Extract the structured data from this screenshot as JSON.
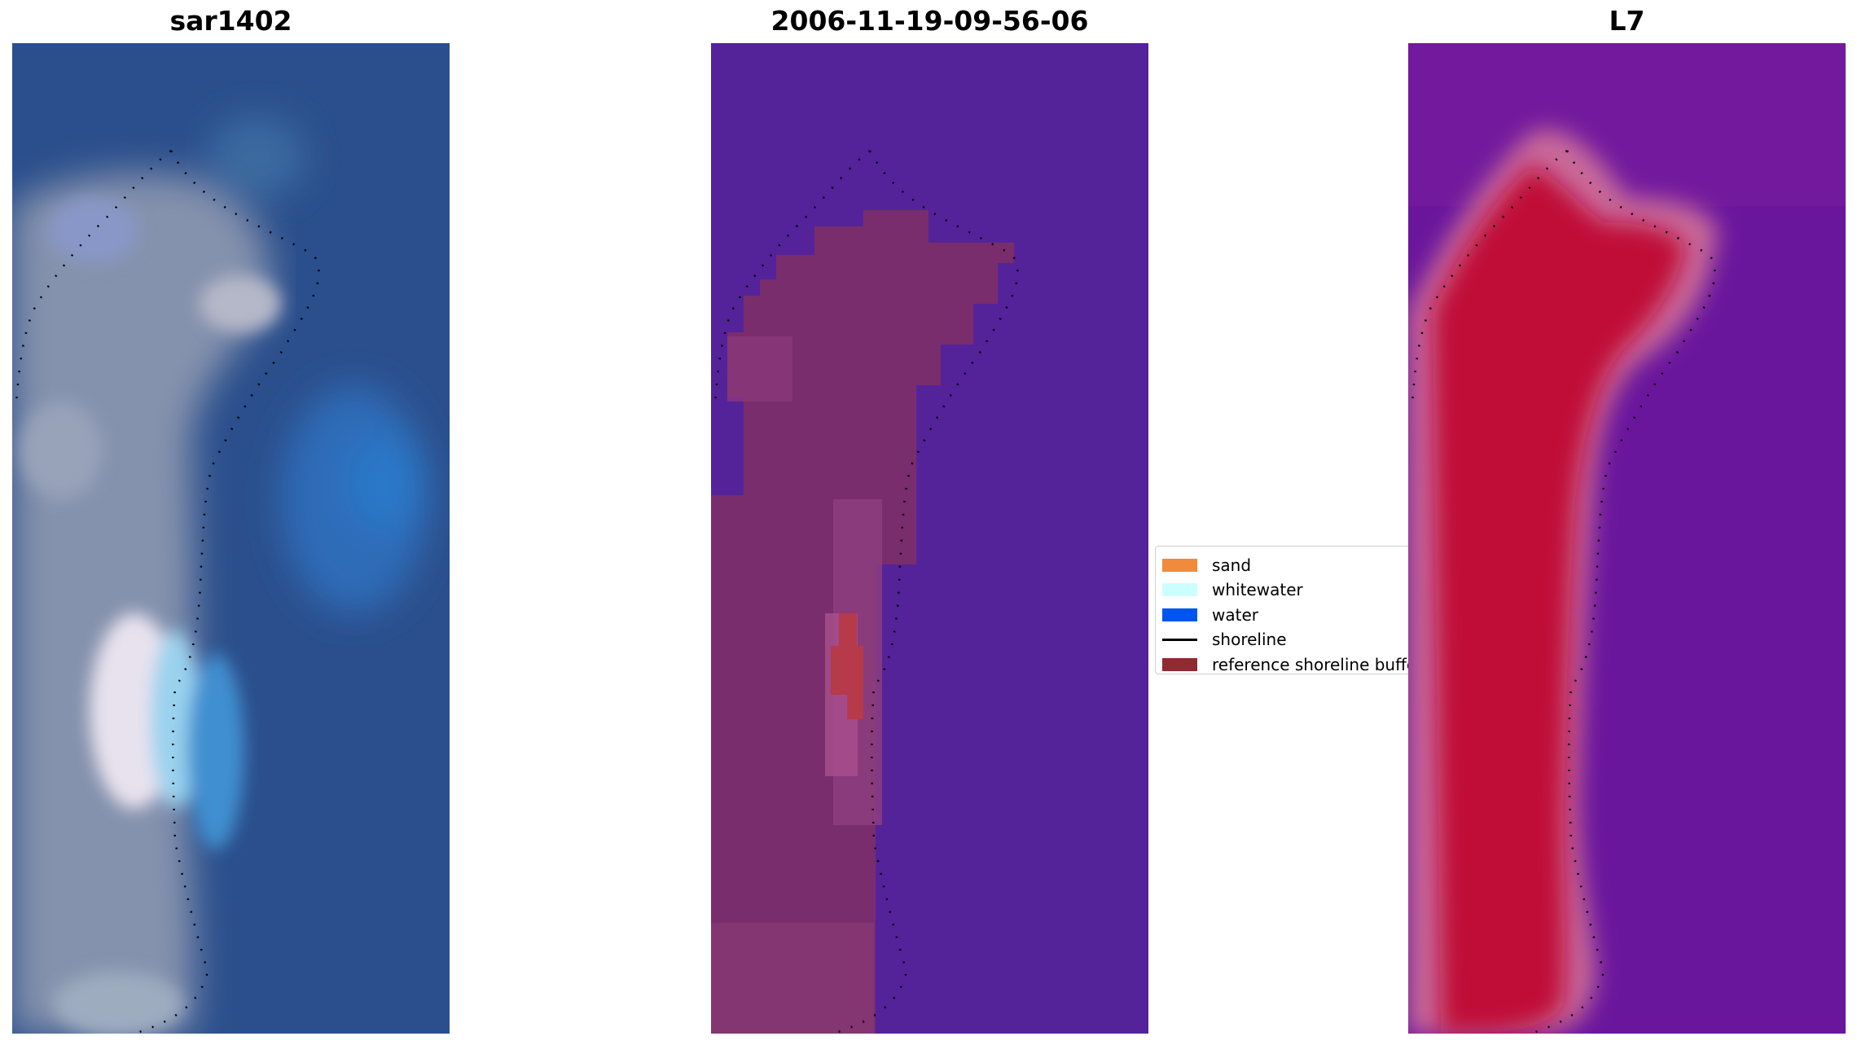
{
  "panels": {
    "left_title": "sar1402",
    "middle_title": "2006-11-19-09-56-06",
    "right_title": "L7"
  },
  "legend": {
    "items": [
      {
        "label": "sand",
        "color": "#f28a3c",
        "kind": "patch"
      },
      {
        "label": "whitewater",
        "color": "#ccffff",
        "kind": "patch"
      },
      {
        "label": "water",
        "color": "#0055ee",
        "kind": "patch"
      },
      {
        "label": "shoreline",
        "color": "#000000",
        "kind": "line"
      },
      {
        "label": "reference shoreline buffer",
        "color": "#922a32",
        "kind": "patch"
      }
    ]
  },
  "colors": {
    "water_rgb": "#2a5290",
    "land_rgb": "#8a96ae",
    "classification_background": "#52229a",
    "classification_buffer": "#7a2e6e",
    "mndwi_land": "#c10a3a",
    "mndwi_water": "#6a169c"
  }
}
